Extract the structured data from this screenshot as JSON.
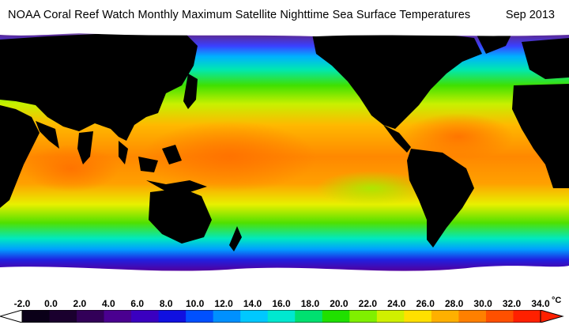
{
  "header": {
    "title": "NOAA Coral Reef Watch Monthly Maximum Satellite Nighttime Sea Surface Temperatures",
    "date": "Sep 2013"
  },
  "legend": {
    "ticks": [
      "-2.0",
      "0.0",
      "2.0",
      "4.0",
      "6.0",
      "8.0",
      "10.0",
      "12.0",
      "14.0",
      "16.0",
      "18.0",
      "20.0",
      "22.0",
      "24.0",
      "26.0",
      "28.0",
      "30.0",
      "32.0",
      "34.0"
    ],
    "unit": "°C",
    "colors": [
      "#0a0018",
      "#1a002e",
      "#320058",
      "#4a0090",
      "#3a00c0",
      "#1010e0",
      "#0050ff",
      "#0090ff",
      "#00c8ff",
      "#00e8d0",
      "#00e070",
      "#20e000",
      "#80f000",
      "#d0f000",
      "#ffe000",
      "#ffb000",
      "#ff8000",
      "#ff5000",
      "#ff2000"
    ]
  },
  "map": {
    "land_color": "#000000",
    "ice_color": "#ffffff"
  }
}
